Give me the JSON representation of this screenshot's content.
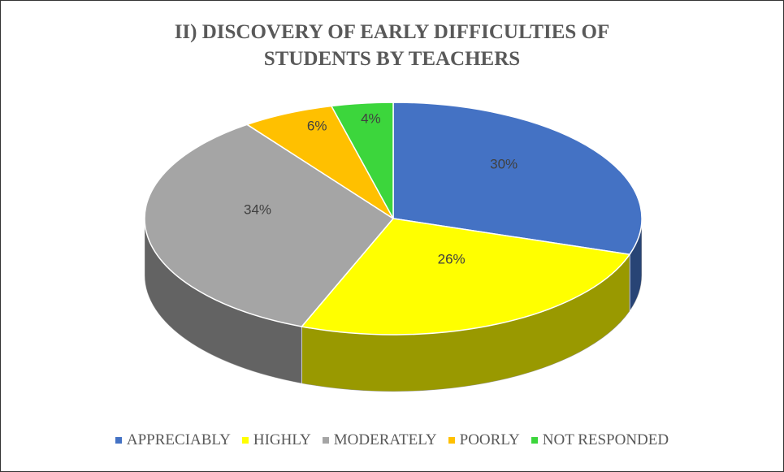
{
  "chart_data": {
    "type": "pie",
    "title": "II) DISCOVERY OF EARLY DIFFICULTIES OF STUDENTS BY TEACHERS",
    "categories": [
      "APPRECIABLY",
      "HIGHLY",
      "MODERATELY",
      "POORLY",
      "NOT RESPONDED"
    ],
    "values": [
      30,
      26,
      34,
      6,
      4
    ],
    "value_labels": [
      "30%",
      "26%",
      "34%",
      "6%",
      "4%"
    ],
    "colors": [
      "#4472c4",
      "#ffff00",
      "#a5a5a5",
      "#ffc000",
      "#3cd63c"
    ],
    "legend": "bottom"
  }
}
